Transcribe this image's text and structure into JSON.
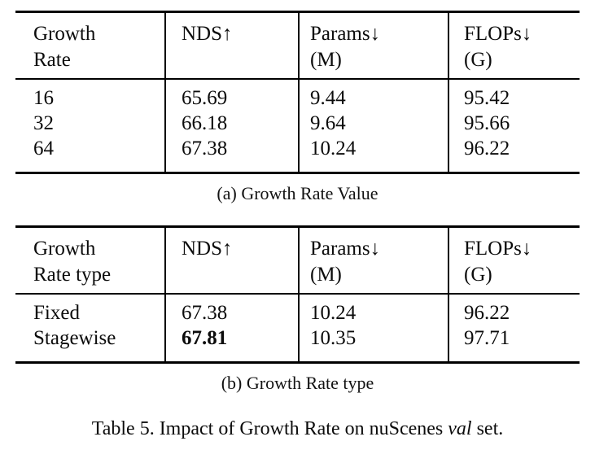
{
  "colors": {
    "background": "#ffffff",
    "text": "#0c0c0c",
    "rule": "#000000"
  },
  "tables": [
    {
      "caption": "(a) Growth Rate Value",
      "columns": [
        {
          "line1": "Growth",
          "line2": "Rate"
        },
        {
          "line1": "NDS↑",
          "line2": ""
        },
        {
          "line1": "Params↓",
          "line2": "(M)"
        },
        {
          "line1": "FLOPs↓",
          "line2": "(G)"
        }
      ],
      "rows": [
        {
          "cells": [
            "16",
            "65.69",
            "9.44",
            "95.42"
          ]
        },
        {
          "cells": [
            "32",
            "66.18",
            "9.64",
            "95.66"
          ]
        },
        {
          "cells": [
            "64",
            "67.38",
            "10.24",
            "96.22"
          ]
        }
      ]
    },
    {
      "caption": "(b) Growth Rate type",
      "columns": [
        {
          "line1": "Growth",
          "line2": "Rate type"
        },
        {
          "line1": "NDS↑",
          "line2": ""
        },
        {
          "line1": "Params↓",
          "line2": "(M)"
        },
        {
          "line1": "FLOPs↓",
          "line2": "(G)"
        }
      ],
      "rows": [
        {
          "cells": [
            "Fixed",
            "67.38",
            "10.24",
            "96.22"
          ]
        },
        {
          "cells": [
            "Stagewise",
            "67.81",
            "10.35",
            "97.71"
          ]
        }
      ]
    }
  ],
  "figure_caption": {
    "prefix": "Table 5. Impact of Growth Rate on nuScenes ",
    "emphasis": "val",
    "suffix": " set."
  }
}
